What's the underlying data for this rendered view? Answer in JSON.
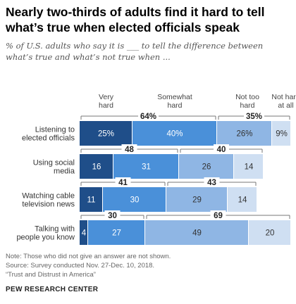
{
  "title": "Nearly two-thirds of adults find it hard to tell what’s true when elected officials speak",
  "subtitle": "% of U.S. adults who say it is ___ to tell the difference between what’s true and what’s not true when ...",
  "note": "Note: Those who did not give an answer are not shown.",
  "source": "Source: Survey conducted Nov. 27-Dec. 10, 2018.",
  "report": "“Trust and Distrust in America”",
  "brand": "PEW RESEARCH CENTER",
  "colors": {
    "very_hard": "#1f4e89",
    "somewhat_hard": "#4a90d9",
    "not_too_hard": "#8fb6e4",
    "not_hard": "#cfdff2"
  },
  "chart_data": {
    "type": "bar",
    "orientation": "horizontal",
    "stacked": true,
    "categories": [
      [
        "Listening to",
        "elected officials"
      ],
      [
        "Using social",
        "media"
      ],
      [
        "Watching cable",
        "television news"
      ],
      [
        "Talking with",
        "people you know"
      ]
    ],
    "series": [
      {
        "name": "Very hard",
        "values": [
          25,
          16,
          11,
          4
        ],
        "labels": [
          "25%",
          "16",
          "11",
          "4"
        ]
      },
      {
        "name": "Somewhat hard",
        "values": [
          40,
          31,
          30,
          27
        ],
        "labels": [
          "40%",
          "31",
          "30",
          "27"
        ]
      },
      {
        "name": "Not too hard",
        "values": [
          26,
          26,
          29,
          49
        ],
        "labels": [
          "26%",
          "26",
          "29",
          "49"
        ]
      },
      {
        "name": "Not hard at all",
        "values": [
          9,
          14,
          14,
          20
        ],
        "labels": [
          "9%",
          "14",
          "14",
          "20"
        ]
      }
    ],
    "legend": [
      [
        "Very",
        "hard"
      ],
      [
        "Somewhat",
        "hard"
      ],
      [
        "Not too",
        "hard"
      ],
      [
        "Not hard",
        "at all"
      ]
    ],
    "nets": {
      "hard": {
        "values": [
          64,
          48,
          41,
          30
        ],
        "labels": [
          "64%",
          "48",
          "41",
          "30"
        ]
      },
      "not_hard": {
        "values": [
          35,
          40,
          43,
          69
        ],
        "labels": [
          "35%",
          "40",
          "43",
          "69"
        ]
      }
    },
    "xlim": [
      0,
      100
    ],
    "legend_position": "top"
  }
}
